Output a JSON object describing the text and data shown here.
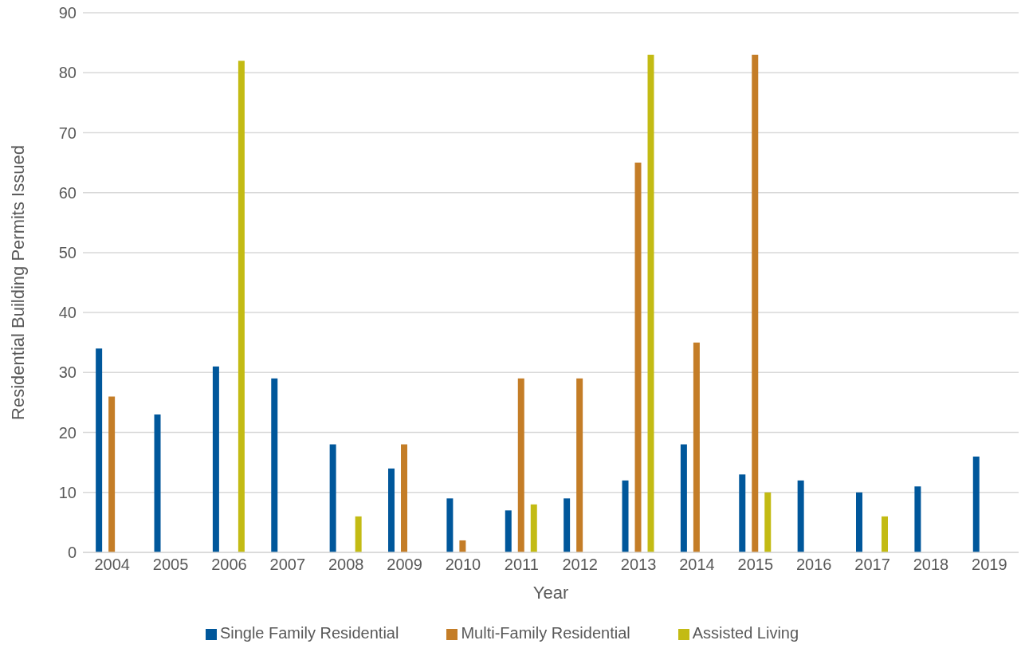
{
  "chart_data": {
    "type": "bar",
    "xlabel": "Year",
    "ylabel": "Residential Building Permits Issued",
    "categories": [
      "2004",
      "2005",
      "2006",
      "2007",
      "2008",
      "2009",
      "2010",
      "2011",
      "2012",
      "2013",
      "2014",
      "2015",
      "2016",
      "2017",
      "2018",
      "2019"
    ],
    "series": [
      {
        "name": "Single Family Residential",
        "color": "#00579b",
        "values": [
          34,
          23,
          31,
          29,
          18,
          14,
          9,
          7,
          9,
          12,
          18,
          13,
          12,
          10,
          11,
          16
        ]
      },
      {
        "name": "Multi-Family Residential",
        "color": "#c47d27",
        "values": [
          26,
          0,
          0,
          0,
          0,
          18,
          2,
          29,
          29,
          65,
          35,
          83,
          0,
          0,
          0,
          0
        ]
      },
      {
        "name": "Assisted Living",
        "color": "#c3bb14",
        "values": [
          0,
          0,
          82,
          0,
          6,
          0,
          0,
          8,
          0,
          83,
          0,
          10,
          0,
          6,
          0,
          0
        ]
      }
    ],
    "ylim": [
      0,
      90
    ],
    "yticks": [
      0,
      10,
      20,
      30,
      40,
      50,
      60,
      70,
      80,
      90
    ],
    "grid": "y",
    "legend": "bottom"
  }
}
